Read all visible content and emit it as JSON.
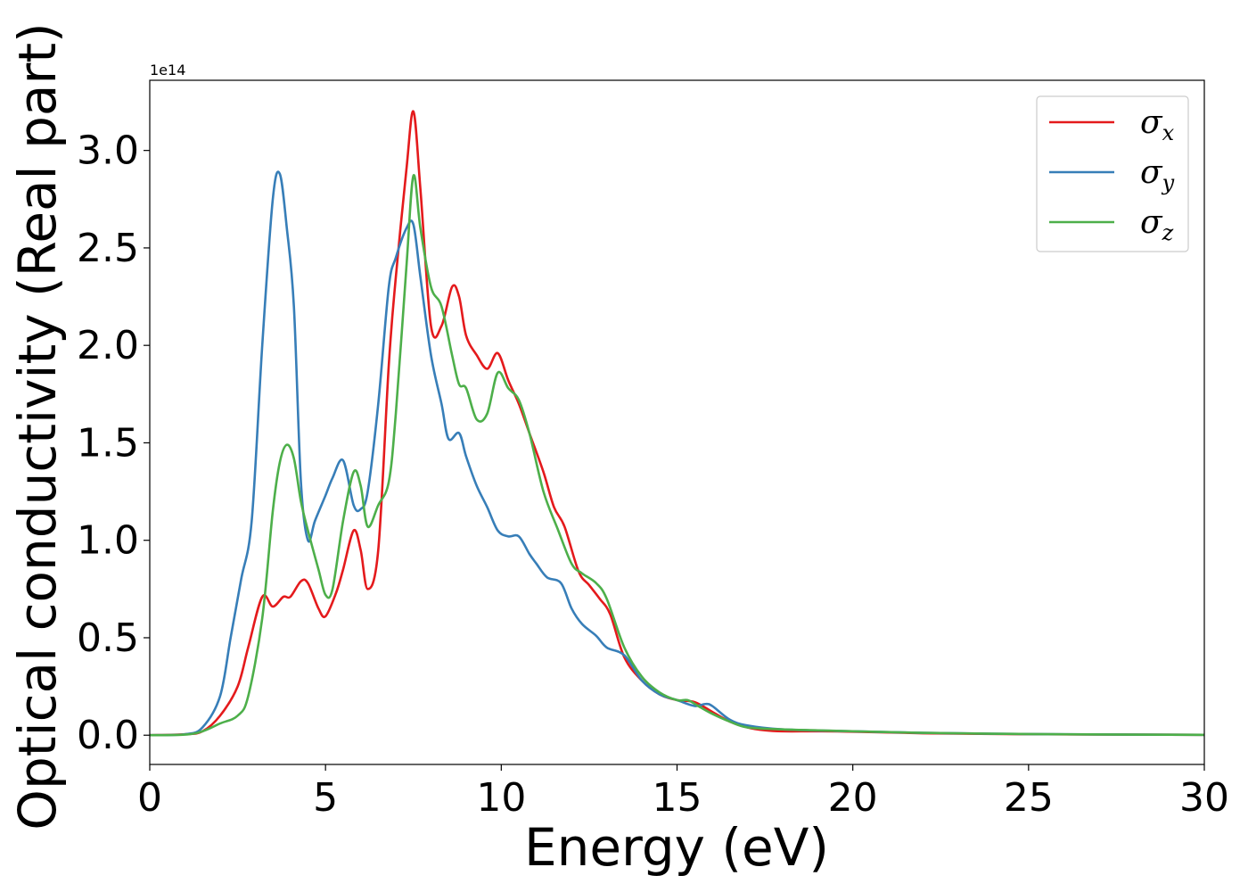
{
  "chart_data": {
    "type": "line",
    "title": "",
    "xlabel": "Energy (eV)",
    "ylabel": "Optical conductivity (Real part)",
    "y_offset_label": "1e14",
    "y_scale": 100000000000000.0,
    "xlim": [
      0,
      30
    ],
    "ylim": [
      -0.15,
      3.36
    ],
    "xticks": [
      0,
      5,
      10,
      15,
      20,
      25,
      30
    ],
    "xtick_labels": [
      "0",
      "5",
      "10",
      "15",
      "20",
      "25",
      "30"
    ],
    "yticks": [
      0.0,
      0.5,
      1.0,
      1.5,
      2.0,
      2.5,
      3.0
    ],
    "ytick_labels": [
      "0.0",
      "0.5",
      "1.0",
      "1.5",
      "2.0",
      "2.5",
      "3.0"
    ],
    "grid": false,
    "legend_position": "top-right",
    "series": [
      {
        "name": "σx",
        "symbol": "σ",
        "subscript": "x",
        "color": "#e41a1c",
        "x": [
          0,
          1,
          1.5,
          2,
          2.5,
          2.8,
          3.2,
          3.5,
          3.8,
          4.0,
          4.3,
          4.5,
          4.8,
          5.0,
          5.3,
          5.5,
          5.8,
          6.0,
          6.2,
          6.5,
          6.8,
          7.0,
          7.3,
          7.5,
          7.7,
          8.0,
          8.3,
          8.6,
          8.8,
          9.0,
          9.3,
          9.6,
          9.9,
          10.2,
          10.5,
          10.8,
          11.2,
          11.5,
          11.8,
          12.2,
          12.5,
          12.8,
          13.1,
          13.5,
          14.0,
          14.5,
          15.0,
          15.5,
          16.0,
          16.5,
          17.0,
          17.5,
          18.0,
          19.0,
          20.0,
          22.0,
          25.0,
          28.0,
          30.0
        ],
        "values": [
          0.0,
          0.005,
          0.02,
          0.1,
          0.25,
          0.45,
          0.71,
          0.66,
          0.71,
          0.71,
          0.79,
          0.78,
          0.65,
          0.61,
          0.73,
          0.85,
          1.05,
          0.95,
          0.75,
          0.95,
          1.9,
          2.35,
          2.9,
          3.2,
          2.8,
          2.1,
          2.1,
          2.3,
          2.25,
          2.05,
          1.95,
          1.88,
          1.96,
          1.82,
          1.7,
          1.55,
          1.35,
          1.17,
          1.07,
          0.84,
          0.77,
          0.7,
          0.62,
          0.4,
          0.28,
          0.21,
          0.18,
          0.17,
          0.12,
          0.07,
          0.04,
          0.025,
          0.02,
          0.02,
          0.018,
          0.01,
          0.005,
          0.003,
          0.002
        ]
      },
      {
        "name": "σy",
        "symbol": "σ",
        "subscript": "y",
        "color": "#377eb8",
        "x": [
          0,
          1,
          1.5,
          2,
          2.3,
          2.6,
          2.9,
          3.2,
          3.5,
          3.7,
          3.9,
          4.1,
          4.3,
          4.5,
          4.7,
          5.0,
          5.2,
          5.5,
          5.8,
          6.0,
          6.2,
          6.5,
          6.8,
          7.0,
          7.3,
          7.5,
          7.7,
          8.0,
          8.3,
          8.5,
          8.8,
          9.0,
          9.3,
          9.6,
          9.9,
          10.2,
          10.5,
          10.8,
          11.0,
          11.3,
          11.7,
          12.0,
          12.3,
          12.7,
          13.0,
          13.5,
          14.0,
          14.5,
          15.0,
          15.5,
          15.8,
          16.0,
          16.5,
          17.0,
          18.0,
          20.0,
          22.0,
          25.0,
          28.0,
          30.0
        ],
        "values": [
          0.0,
          0.005,
          0.04,
          0.2,
          0.5,
          0.8,
          1.1,
          2.0,
          2.75,
          2.88,
          2.6,
          2.2,
          1.3,
          1.0,
          1.1,
          1.23,
          1.32,
          1.41,
          1.18,
          1.16,
          1.25,
          1.7,
          2.3,
          2.45,
          2.6,
          2.62,
          2.35,
          1.95,
          1.7,
          1.52,
          1.55,
          1.43,
          1.28,
          1.17,
          1.05,
          1.02,
          1.02,
          0.93,
          0.88,
          0.81,
          0.78,
          0.65,
          0.57,
          0.51,
          0.45,
          0.41,
          0.28,
          0.21,
          0.18,
          0.15,
          0.16,
          0.15,
          0.08,
          0.05,
          0.03,
          0.02,
          0.012,
          0.006,
          0.003,
          0.002
        ]
      },
      {
        "name": "σz",
        "symbol": "σ",
        "subscript": "z",
        "color": "#4daf4a",
        "x": [
          0,
          1,
          1.5,
          2,
          2.5,
          2.8,
          3.2,
          3.5,
          3.7,
          3.9,
          4.1,
          4.3,
          4.5,
          4.8,
          5.0,
          5.2,
          5.5,
          5.8,
          6.0,
          6.2,
          6.5,
          6.8,
          7.0,
          7.3,
          7.5,
          7.7,
          8.0,
          8.3,
          8.6,
          8.8,
          9.0,
          9.3,
          9.6,
          9.9,
          10.2,
          10.5,
          10.8,
          11.2,
          11.6,
          12.0,
          12.3,
          12.7,
          13.0,
          13.5,
          14.0,
          14.5,
          15.0,
          15.3,
          15.6,
          16.0,
          16.5,
          17.0,
          18.0,
          19.0,
          20.0,
          22.0,
          25.0,
          28.0,
          30.0
        ],
        "values": [
          0.0,
          0.003,
          0.02,
          0.06,
          0.1,
          0.2,
          0.6,
          1.15,
          1.4,
          1.49,
          1.42,
          1.2,
          1.05,
          0.85,
          0.72,
          0.75,
          1.1,
          1.35,
          1.28,
          1.07,
          1.18,
          1.3,
          1.65,
          2.4,
          2.87,
          2.6,
          2.3,
          2.2,
          1.95,
          1.8,
          1.78,
          1.62,
          1.65,
          1.86,
          1.78,
          1.72,
          1.55,
          1.25,
          1.06,
          0.88,
          0.83,
          0.78,
          0.7,
          0.45,
          0.3,
          0.22,
          0.18,
          0.18,
          0.15,
          0.11,
          0.07,
          0.04,
          0.03,
          0.025,
          0.02,
          0.012,
          0.006,
          0.003,
          0.002
        ]
      }
    ]
  }
}
